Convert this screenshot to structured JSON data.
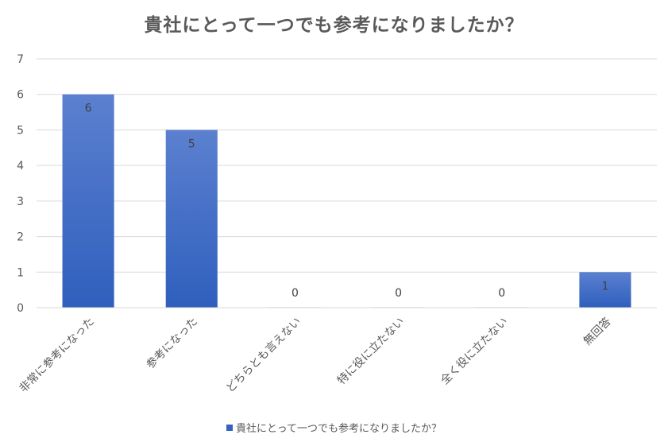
{
  "chart_data": {
    "type": "bar",
    "title": "貴社にとって一つでも参考になりましたか？",
    "categories": [
      "非常に参考になった",
      "参考になった",
      "どちらとも言えない",
      "特に役に立たない",
      "全く役に立たない",
      "無回答"
    ],
    "series": [
      {
        "name": "貴社にとって一つでも参考になりましたか？",
        "values": [
          6,
          5,
          0,
          0,
          0,
          1
        ]
      }
    ],
    "ylim": [
      0,
      7
    ],
    "yticks": [
      0,
      1,
      2,
      3,
      4,
      5,
      6,
      7
    ],
    "grid": true,
    "data_labels": true,
    "legend_position": "bottom",
    "colors": {
      "bar_top": "#5b80cf",
      "bar_bottom": "#2f5fbd",
      "legend": "#3463c2",
      "grid": "#d9d9d9",
      "text": "#595959"
    }
  }
}
